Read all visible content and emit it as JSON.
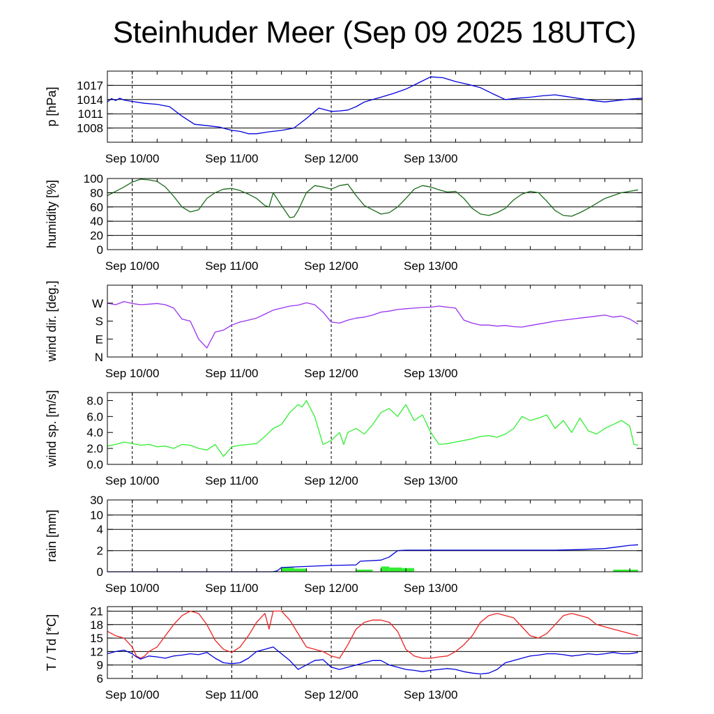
{
  "title": "Steinhuder Meer (Sep 09 2025 18UTC)",
  "x_tick_labels": [
    "Sep 10/00",
    "Sep 11/00",
    "Sep 12/00",
    "Sep 13/00"
  ],
  "chart_data": [
    {
      "type": "line",
      "id": "pressure",
      "ylabel": "p [hPa]",
      "ylim": [
        1005,
        1020
      ],
      "yticks": [
        1008,
        1011,
        1014,
        1017
      ],
      "ytick_labels": [
        "1008",
        "1011",
        "1014",
        "1017"
      ],
      "grid_y": true,
      "x_unit": "hours since Sep 09 18UTC",
      "series": [
        {
          "name": "pressure",
          "color": "#0000dd",
          "x": [
            0,
            1,
            2,
            3,
            4,
            6,
            9,
            12,
            15,
            18,
            21,
            24,
            27,
            30,
            32,
            34,
            36,
            39,
            42,
            45,
            48,
            51,
            54,
            56,
            58,
            60,
            62,
            64,
            66,
            69,
            72,
            75,
            78,
            81,
            84,
            87,
            90,
            93,
            96,
            99,
            102,
            105,
            108,
            111,
            114,
            117,
            120,
            123,
            126,
            129
          ],
          "y": [
            1013.5,
            1014.2,
            1013.8,
            1014.3,
            1013.9,
            1013.6,
            1013.2,
            1013.0,
            1012.5,
            1010.5,
            1008.8,
            1008.5,
            1008.2,
            1007.5,
            1007.3,
            1006.8,
            1006.8,
            1007.2,
            1007.5,
            1008.0,
            1010.0,
            1012.2,
            1011.5,
            1011.6,
            1011.8,
            1012.5,
            1013.5,
            1014.0,
            1014.5,
            1015.3,
            1016.2,
            1017.5,
            1018.8,
            1018.6,
            1017.8,
            1017.2,
            1016.5,
            1015.2,
            1014.0,
            1014.3,
            1014.5,
            1014.8,
            1015.0,
            1014.6,
            1014.2,
            1013.8,
            1013.5,
            1013.8,
            1014.1,
            1014.3
          ]
        }
      ]
    },
    {
      "type": "line",
      "id": "humidity",
      "ylabel": "humidity [%]",
      "ylim": [
        0,
        100
      ],
      "yticks": [
        0,
        20,
        40,
        60,
        80,
        100
      ],
      "ytick_labels": [
        "0",
        "20",
        "40",
        "60",
        "80",
        "100"
      ],
      "grid_y": true,
      "x_unit": "hours since Sep 09 18UTC",
      "series": [
        {
          "name": "humidity",
          "color": "#1a6b1a",
          "x": [
            0,
            2,
            4,
            6,
            8,
            10,
            12,
            14,
            16,
            18,
            20,
            22,
            24,
            26,
            28,
            30,
            32,
            34,
            36,
            38,
            39,
            40,
            42,
            44,
            45,
            46,
            48,
            50,
            52,
            54,
            56,
            58,
            60,
            62,
            64,
            66,
            68,
            70,
            72,
            74,
            76,
            78,
            80,
            82,
            84,
            86,
            88,
            90,
            92,
            94,
            96,
            98,
            100,
            102,
            104,
            106,
            108,
            110,
            112,
            114,
            116,
            118,
            120,
            122,
            124,
            126,
            128
          ],
          "y": [
            76,
            82,
            88,
            95,
            99,
            98,
            96,
            88,
            75,
            60,
            53,
            56,
            72,
            80,
            85,
            86,
            83,
            78,
            72,
            62,
            60,
            80,
            62,
            45,
            46,
            55,
            80,
            90,
            88,
            85,
            90,
            92,
            76,
            62,
            56,
            50,
            52,
            60,
            72,
            85,
            90,
            88,
            84,
            81,
            82,
            72,
            58,
            50,
            48,
            52,
            58,
            70,
            78,
            82,
            80,
            68,
            55,
            48,
            47,
            52,
            58,
            65,
            72,
            76,
            80,
            82,
            84
          ]
        }
      ]
    },
    {
      "type": "line",
      "id": "wind_direction",
      "ylabel": "wind dir. [deg.]",
      "ylim": [
        0,
        360
      ],
      "yticks": [
        0,
        90,
        180,
        270
      ],
      "ytick_labels": [
        "N",
        "E",
        "S",
        "W"
      ],
      "grid_y": false,
      "x_unit": "hours since Sep 09 18UTC",
      "series": [
        {
          "name": "wind direction",
          "color": "#9933ee",
          "x": [
            0,
            2,
            4,
            6,
            8,
            10,
            12,
            14,
            16,
            18,
            20,
            22,
            24,
            26,
            28,
            30,
            32,
            34,
            36,
            38,
            40,
            42,
            44,
            46,
            48,
            50,
            52,
            54,
            56,
            58,
            60,
            62,
            64,
            66,
            68,
            70,
            72,
            74,
            76,
            78,
            80,
            82,
            84,
            86,
            88,
            90,
            92,
            94,
            96,
            98,
            100,
            102,
            104,
            106,
            108,
            110,
            112,
            114,
            116,
            118,
            120,
            122,
            124,
            126,
            128
          ],
          "y": [
            270,
            262,
            278,
            268,
            262,
            265,
            268,
            262,
            245,
            190,
            180,
            90,
            45,
            125,
            135,
            160,
            175,
            185,
            195,
            215,
            235,
            245,
            255,
            260,
            272,
            262,
            225,
            175,
            170,
            185,
            195,
            200,
            210,
            225,
            230,
            238,
            242,
            245,
            248,
            250,
            255,
            250,
            245,
            185,
            170,
            160,
            160,
            155,
            158,
            152,
            150,
            158,
            165,
            172,
            180,
            185,
            190,
            195,
            200,
            205,
            210,
            200,
            205,
            190,
            165
          ]
        }
      ]
    },
    {
      "type": "line",
      "id": "wind_speed",
      "ylabel": "wind sp. [m/s]",
      "ylim": [
        0,
        9
      ],
      "yticks": [
        0,
        2,
        4,
        6,
        8
      ],
      "ytick_labels": [
        "0.0",
        "2.0",
        "4.0",
        "6.0",
        "8.0"
      ],
      "grid_y": false,
      "x_unit": "hours since Sep 09 18UTC",
      "series": [
        {
          "name": "wind speed",
          "color": "#33ee33",
          "x": [
            0,
            2,
            4,
            6,
            8,
            10,
            12,
            14,
            16,
            18,
            20,
            22,
            24,
            26,
            28,
            30,
            32,
            34,
            36,
            38,
            40,
            42,
            44,
            46,
            47,
            48,
            50,
            52,
            54,
            56,
            57,
            58,
            60,
            62,
            64,
            66,
            68,
            70,
            72,
            74,
            76,
            78,
            80,
            82,
            84,
            86,
            88,
            90,
            92,
            94,
            96,
            98,
            100,
            102,
            104,
            106,
            108,
            110,
            112,
            114,
            116,
            118,
            120,
            122,
            124,
            126,
            127,
            128
          ],
          "y": [
            2.3,
            2.5,
            2.8,
            2.6,
            2.4,
            2.5,
            2.2,
            2.3,
            2.0,
            2.5,
            2.4,
            2.0,
            1.8,
            2.5,
            1.0,
            2.2,
            2.4,
            2.5,
            2.6,
            3.5,
            4.5,
            5.0,
            6.5,
            7.5,
            7.2,
            8.0,
            6.0,
            2.5,
            3.0,
            4.0,
            2.5,
            4.0,
            4.5,
            3.8,
            5.0,
            6.5,
            7.0,
            6.0,
            7.5,
            5.5,
            6.2,
            4.0,
            2.5,
            2.6,
            2.8,
            3.0,
            3.2,
            3.5,
            3.6,
            3.4,
            3.8,
            4.5,
            6.0,
            5.5,
            5.8,
            6.2,
            4.5,
            5.5,
            4.0,
            5.8,
            4.2,
            3.8,
            4.5,
            5.0,
            5.5,
            4.8,
            2.5,
            2.4
          ]
        }
      ]
    },
    {
      "type": "bar_line",
      "id": "rain",
      "ylabel": "rain [mm]",
      "ylim": [
        0,
        30
      ],
      "yticks": [
        0,
        2,
        4,
        10,
        30
      ],
      "ytick_labels": [
        "0",
        "2",
        "4",
        "10",
        "30"
      ],
      "grid_y": true,
      "x_unit": "hours since Sep 09 18UTC",
      "series": [
        {
          "name": "accumulated rain",
          "color": "#0000dd",
          "x": [
            0,
            40,
            41,
            42,
            48,
            54,
            60,
            61,
            66,
            68,
            70,
            72,
            78,
            84,
            90,
            96,
            102,
            108,
            114,
            120,
            126,
            128
          ],
          "y": [
            0,
            0,
            0.1,
            0.4,
            0.5,
            0.6,
            0.65,
            1.0,
            1.1,
            1.4,
            2.0,
            2.05,
            2.05,
            2.05,
            2.05,
            2.05,
            2.05,
            2.05,
            2.1,
            2.2,
            2.5,
            2.55
          ]
        },
        {
          "name": "hourly rain",
          "color": "#33ee33",
          "bars": [
            {
              "x0": 42,
              "x1": 45,
              "y": 0.4
            },
            {
              "x0": 45,
              "x1": 48,
              "y": 0.3
            },
            {
              "x0": 60,
              "x1": 64,
              "y": 0.2
            },
            {
              "x0": 66,
              "x1": 68,
              "y": 0.5
            },
            {
              "x0": 68,
              "x1": 71,
              "y": 0.4
            },
            {
              "x0": 71,
              "x1": 74,
              "y": 0.35
            },
            {
              "x0": 122,
              "x1": 128,
              "y": 0.2
            }
          ]
        }
      ]
    },
    {
      "type": "line",
      "id": "temperature",
      "ylabel": "T / Td [*C]",
      "ylim": [
        6,
        22
      ],
      "yticks": [
        6,
        9,
        12,
        15,
        18,
        21
      ],
      "ytick_labels": [
        "6",
        "9",
        "12",
        "15",
        "18",
        "21"
      ],
      "grid_y": true,
      "x_unit": "hours since Sep 09 18UTC",
      "series": [
        {
          "name": "T",
          "color": "#ee2222",
          "x": [
            0,
            2,
            4,
            6,
            7,
            8,
            9,
            10,
            12,
            14,
            16,
            18,
            20,
            22,
            24,
            26,
            28,
            30,
            32,
            34,
            36,
            38,
            39,
            40,
            42,
            44,
            46,
            48,
            50,
            52,
            54,
            56,
            58,
            60,
            62,
            64,
            66,
            68,
            70,
            72,
            74,
            76,
            78,
            80,
            82,
            84,
            86,
            88,
            90,
            92,
            94,
            96,
            98,
            100,
            102,
            104,
            106,
            108,
            110,
            112,
            114,
            116,
            118,
            120,
            122,
            124,
            126,
            128
          ],
          "y": [
            16.5,
            15.5,
            15.0,
            13.0,
            11.0,
            10.5,
            11.0,
            12.0,
            13.0,
            15.5,
            18.0,
            20.0,
            21.0,
            20.5,
            18.0,
            14.5,
            12.5,
            11.8,
            13.0,
            15.5,
            18.5,
            20.5,
            17.0,
            21.0,
            21.0,
            19.0,
            16.0,
            13.0,
            12.5,
            12.0,
            11.0,
            10.5,
            13.5,
            17.0,
            18.5,
            19.0,
            19.0,
            18.5,
            16.5,
            12.5,
            11.0,
            10.5,
            10.5,
            10.8,
            11.0,
            12.0,
            13.5,
            15.5,
            18.5,
            20.0,
            20.5,
            20.0,
            19.5,
            17.5,
            15.5,
            15.0,
            16.0,
            18.0,
            20.0,
            20.5,
            20.0,
            19.5,
            18.0,
            17.5,
            17.0,
            16.5,
            16.0,
            15.5
          ]
        },
        {
          "name": "Td",
          "color": "#0000dd",
          "x": [
            0,
            2,
            4,
            6,
            7,
            8,
            10,
            12,
            14,
            16,
            18,
            20,
            22,
            24,
            26,
            28,
            30,
            32,
            34,
            36,
            38,
            40,
            42,
            44,
            46,
            48,
            50,
            52,
            54,
            56,
            58,
            60,
            62,
            64,
            66,
            68,
            70,
            72,
            74,
            76,
            78,
            80,
            82,
            84,
            86,
            88,
            90,
            92,
            94,
            96,
            98,
            100,
            102,
            104,
            106,
            108,
            110,
            112,
            114,
            116,
            118,
            120,
            122,
            124,
            126,
            128
          ],
          "y": [
            11.5,
            12.0,
            12.3,
            11.5,
            10.8,
            10.3,
            11.0,
            10.8,
            10.5,
            11.0,
            11.2,
            11.5,
            11.3,
            11.8,
            10.5,
            9.5,
            9.3,
            9.5,
            10.5,
            12.0,
            12.5,
            13.0,
            11.5,
            10.0,
            8.0,
            9.0,
            10.0,
            10.2,
            8.5,
            8.0,
            8.5,
            9.0,
            9.5,
            10.0,
            10.0,
            9.0,
            8.5,
            8.0,
            7.8,
            7.5,
            7.8,
            8.0,
            8.2,
            8.0,
            7.5,
            7.2,
            7.0,
            7.2,
            8.0,
            9.5,
            10.0,
            10.5,
            11.0,
            11.2,
            11.5,
            11.5,
            11.3,
            11.0,
            11.2,
            11.5,
            11.3,
            11.5,
            11.8,
            11.5,
            11.5,
            11.8
          ]
        }
      ]
    }
  ]
}
